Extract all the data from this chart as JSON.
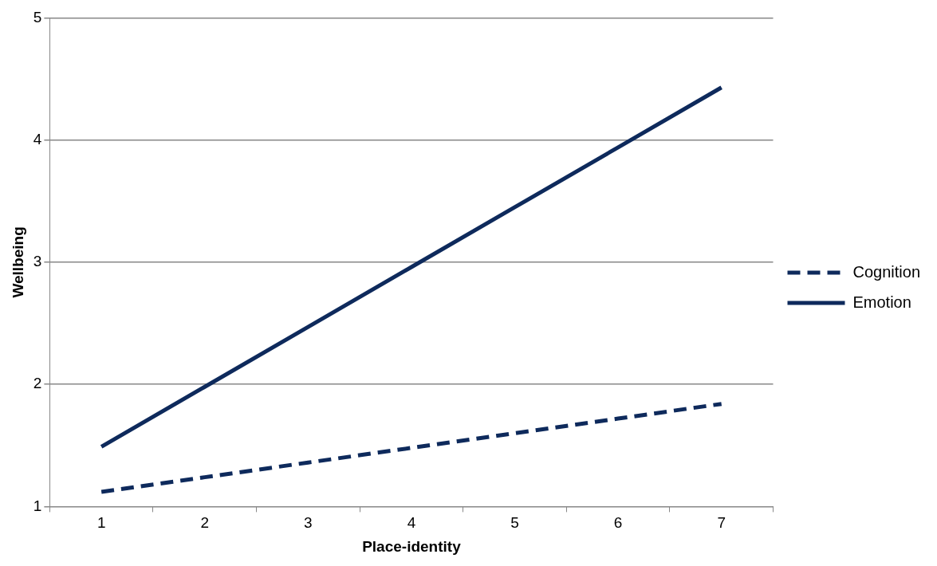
{
  "chart_data": {
    "type": "line",
    "xlabel": "Place-identity",
    "ylabel": "Wellbeing",
    "categories": [
      "1",
      "2",
      "3",
      "4",
      "5",
      "6",
      "7"
    ],
    "series": [
      {
        "name": "Cognition",
        "color": "#0e2a5c",
        "line_style": "dashed",
        "values": [
          1.12,
          1.24,
          1.36,
          1.48,
          1.6,
          1.72,
          1.84
        ]
      },
      {
        "name": "Emotion",
        "color": "#0e2a5c",
        "line_style": "solid",
        "values": [
          1.49,
          1.98,
          2.47,
          2.96,
          3.45,
          3.94,
          4.43
        ]
      }
    ],
    "ylim": [
      1,
      5
    ],
    "yticks": [
      1,
      2,
      3,
      4,
      5
    ],
    "grid": "y",
    "legend": "right",
    "marker": "none"
  }
}
